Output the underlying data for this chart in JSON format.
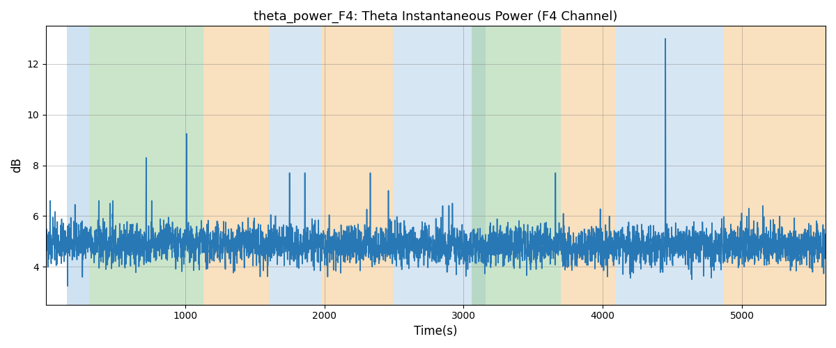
{
  "title": "theta_power_F4: Theta Instantaneous Power (F4 Channel)",
  "xlabel": "Time(s)",
  "ylabel": "dB",
  "xlim": [
    0,
    5600
  ],
  "ylim": [
    2.5,
    13.5
  ],
  "yticks": [
    4,
    6,
    8,
    10,
    12
  ],
  "xticks": [
    1000,
    2000,
    3000,
    4000,
    5000
  ],
  "line_color": "#2878b5",
  "line_width": 1.2,
  "bg_regions": [
    {
      "xmin": 0,
      "xmax": 150,
      "color": "#ffffff",
      "alpha": 0.0
    },
    {
      "xmin": 150,
      "xmax": 310,
      "color": "#b0cfe8",
      "alpha": 0.6
    },
    {
      "xmin": 310,
      "xmax": 1130,
      "color": "#99cc99",
      "alpha": 0.5
    },
    {
      "xmin": 1130,
      "xmax": 1600,
      "color": "#f5c88a",
      "alpha": 0.55
    },
    {
      "xmin": 1600,
      "xmax": 1980,
      "color": "#b0cfe8",
      "alpha": 0.5
    },
    {
      "xmin": 1980,
      "xmax": 2490,
      "color": "#f5c88a",
      "alpha": 0.55
    },
    {
      "xmin": 2490,
      "xmax": 3060,
      "color": "#b0cfe8",
      "alpha": 0.5
    },
    {
      "xmin": 3060,
      "xmax": 3160,
      "color": "#b0cfe8",
      "alpha": 0.5
    },
    {
      "xmin": 3060,
      "xmax": 3700,
      "color": "#99cc99",
      "alpha": 0.5
    },
    {
      "xmin": 3700,
      "xmax": 4090,
      "color": "#f5c88a",
      "alpha": 0.55
    },
    {
      "xmin": 4090,
      "xmax": 4870,
      "color": "#b0cfe8",
      "alpha": 0.5
    },
    {
      "xmin": 4870,
      "xmax": 5600,
      "color": "#f5c88a",
      "alpha": 0.55
    }
  ],
  "seed": 42,
  "n_points": 5600,
  "figsize": [
    12,
    5
  ],
  "dpi": 100,
  "title_fontsize": 13,
  "label_fontsize": 12
}
